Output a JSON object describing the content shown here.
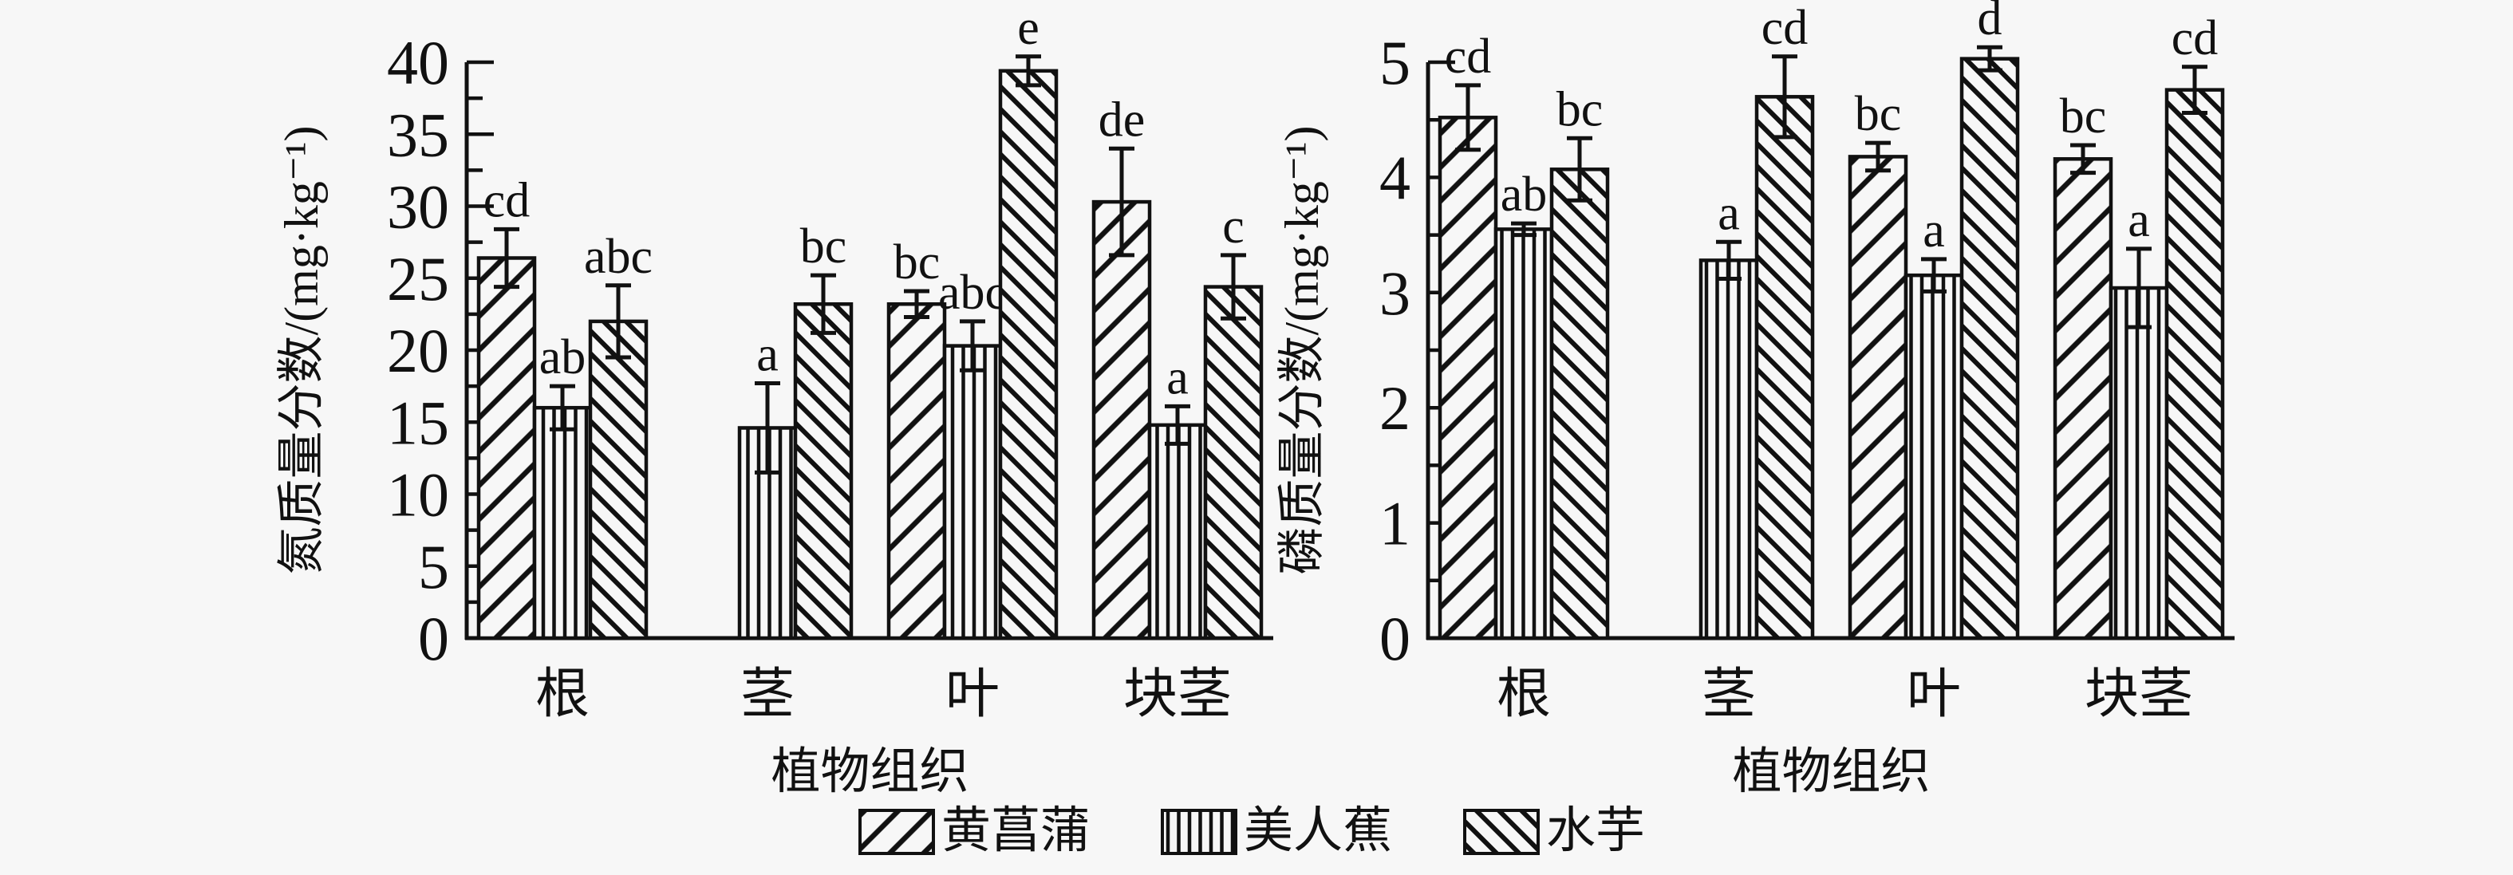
{
  "figure": {
    "background": "#f7f7f7",
    "ink": "#111111",
    "legend": [
      {
        "label": "黄菖蒲",
        "pattern": "diagonal-up"
      },
      {
        "label": "美人蕉",
        "pattern": "vertical"
      },
      {
        "label": "水芋",
        "pattern": "diagonal-down"
      }
    ]
  },
  "chart_data": [
    {
      "type": "bar",
      "title": "",
      "ylabel": "氮质量分数/(mg·kg⁻¹)",
      "xlabel": "植物组织",
      "categories": [
        "根",
        "茎",
        "叶",
        "块茎"
      ],
      "ylim": [
        0,
        40
      ],
      "ytick_step": 5,
      "minor_tick_step": 2.5,
      "grid": false,
      "legend_position": "bottom",
      "series": [
        {
          "name": "黄菖蒲",
          "pattern": "diagonal-up",
          "values": [
            26.4,
            null,
            23.2,
            30.3
          ],
          "errors": [
            2.0,
            null,
            0.9,
            3.7
          ],
          "letters": [
            "cd",
            null,
            "bc",
            "de"
          ]
        },
        {
          "name": "美人蕉",
          "pattern": "vertical",
          "values": [
            16.0,
            14.6,
            20.3,
            14.8
          ],
          "errors": [
            1.5,
            3.1,
            1.7,
            1.3
          ],
          "letters": [
            "ab",
            "a",
            "abc",
            "a"
          ]
        },
        {
          "name": "水芋",
          "pattern": "diagonal-down",
          "values": [
            22.0,
            23.2,
            39.4,
            24.4
          ],
          "errors": [
            2.5,
            2.0,
            1.0,
            2.2
          ],
          "letters": [
            "abc",
            "bc",
            "e",
            "c"
          ]
        }
      ]
    },
    {
      "type": "bar",
      "title": "",
      "ylabel": "磷质量分数/(mg·kg⁻¹)",
      "xlabel": "植物组织",
      "categories": [
        "根",
        "茎",
        "叶",
        "块茎"
      ],
      "ylim": [
        0,
        5
      ],
      "ytick_step": 1,
      "minor_tick_step": 0.5,
      "grid": false,
      "legend_position": "bottom",
      "series": [
        {
          "name": "黄菖蒲",
          "pattern": "diagonal-up",
          "values": [
            4.52,
            null,
            4.18,
            4.16
          ],
          "errors": [
            0.28,
            null,
            0.12,
            0.12
          ],
          "letters": [
            "cd",
            null,
            "bc",
            "bc"
          ]
        },
        {
          "name": "美人蕉",
          "pattern": "vertical",
          "values": [
            3.55,
            3.28,
            3.15,
            3.04
          ],
          "errors": [
            0.05,
            0.16,
            0.14,
            0.34
          ],
          "letters": [
            "ab",
            "a",
            "a",
            "a"
          ]
        },
        {
          "name": "水芋",
          "pattern": "diagonal-down",
          "values": [
            4.07,
            4.7,
            5.03,
            4.76
          ],
          "errors": [
            0.27,
            0.35,
            0.1,
            0.2
          ],
          "letters": [
            "bc",
            "cd",
            "d",
            "cd"
          ]
        }
      ]
    }
  ]
}
